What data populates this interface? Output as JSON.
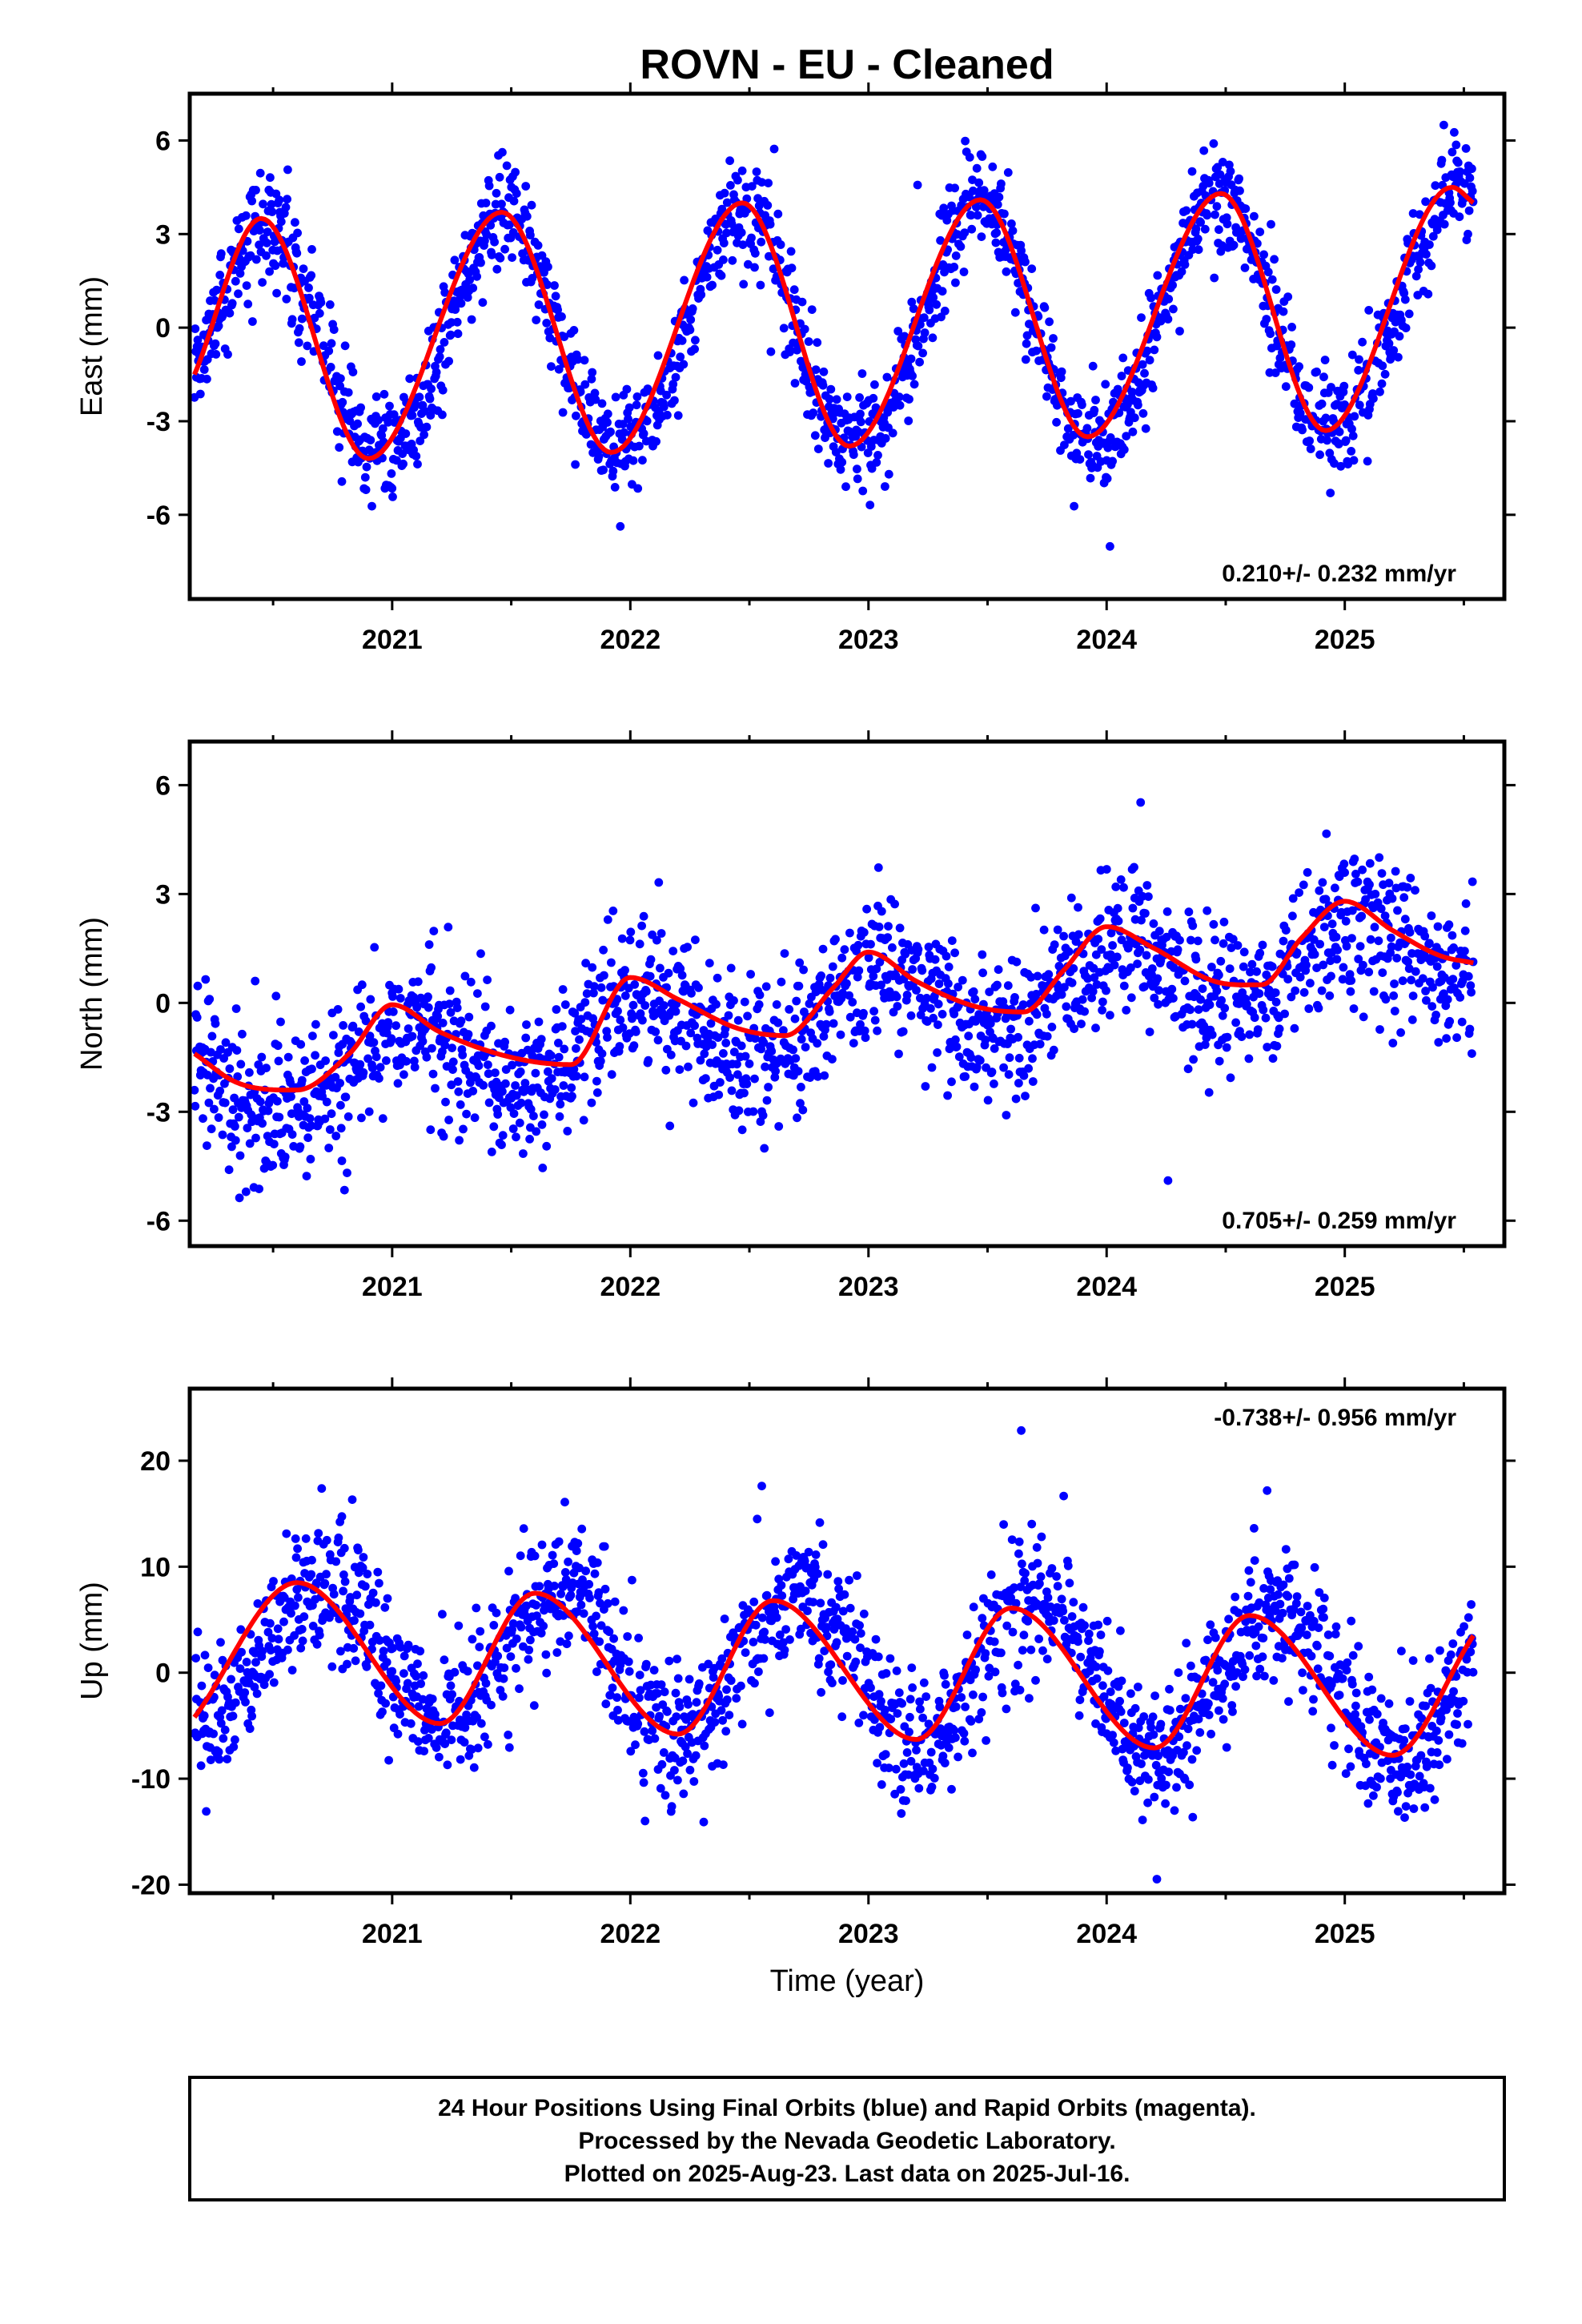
{
  "title": "ROVN  - EU - Cleaned",
  "x_axis_label": "Time (year)",
  "footer": {
    "line1": "24 Hour Positions Using Final Orbits (blue) and Rapid Orbits (magenta).",
    "line2": "Processed by the Nevada Geodetic Laboratory.",
    "line3": "Plotted on 2025-Aug-23. Last data on 2025-Jul-16."
  },
  "colors": {
    "final_orbits": "#0000ff",
    "fit_model": "#ff0000",
    "frame": "#000000"
  },
  "chart_data": [
    {
      "type": "scatter",
      "panel": "east",
      "ylabel": "East (mm)",
      "xlim": [
        2020.15,
        2025.67
      ],
      "ylim": [
        -8.7,
        7.5
      ],
      "xticks": [
        2021,
        2022,
        2023,
        2024,
        2025
      ],
      "xtick_labels": [
        "2021",
        "2022",
        "2023",
        "2024",
        "2025"
      ],
      "yticks": [
        -6,
        -3,
        0,
        3,
        6
      ],
      "ytick_labels": [
        "-6",
        "-3",
        "0",
        "3",
        "6"
      ],
      "rate_text": "0.210+/- 0.232 mm/yr",
      "rate_position": "bottom-right",
      "grid": false,
      "data_span": [
        2020.17,
        2025.54
      ],
      "series": [
        {
          "marker": "dots",
          "model": {
            "offset": 0.0,
            "trend": 0.21,
            "ref_year": 2023.0,
            "annual_cos": -3.7,
            "annual_sin": 0.95,
            "semiannual_cos": 0.25,
            "semiannual_sin": 0.0,
            "scatter_sd": 0.85
          }
        },
        {
          "marker": "line",
          "fit_points": [
            [
              2020.17,
              -1.5
            ],
            [
              2020.45,
              3.5
            ],
            [
              2020.9,
              -4.2
            ],
            [
              2021.46,
              3.7
            ],
            [
              2021.92,
              -4.0
            ],
            [
              2022.47,
              4.0
            ],
            [
              2022.92,
              -3.8
            ],
            [
              2023.47,
              4.1
            ],
            [
              2023.92,
              -3.5
            ],
            [
              2024.48,
              4.3
            ],
            [
              2024.92,
              -3.3
            ],
            [
              2025.45,
              4.5
            ],
            [
              2025.54,
              4.0
            ]
          ]
        }
      ]
    },
    {
      "type": "scatter",
      "panel": "north",
      "ylabel": "North (mm)",
      "xlim": [
        2020.15,
        2025.67
      ],
      "ylim": [
        -6.7,
        7.2
      ],
      "xticks": [
        2021,
        2022,
        2023,
        2024,
        2025
      ],
      "xtick_labels": [
        "2021",
        "2022",
        "2023",
        "2024",
        "2025"
      ],
      "yticks": [
        -6,
        -3,
        0,
        3,
        6
      ],
      "ytick_labels": [
        "-6",
        "-3",
        "0",
        "3",
        "6"
      ],
      "rate_text": "0.705+/- 0.259 mm/yr",
      "rate_position": "bottom-right",
      "grid": false,
      "data_span": [
        2020.17,
        2025.54
      ],
      "series": [
        {
          "marker": "dots",
          "model": {
            "offset": -0.2,
            "trend": 0.705,
            "ref_year": 2023.0,
            "annual_cos": 1.0,
            "annual_sin": 0.3,
            "semiannual_cos": 0.0,
            "semiannual_sin": 0.0,
            "scatter_sd": 1.0
          }
        },
        {
          "marker": "line",
          "fit_points": [
            [
              2020.17,
              -1.4
            ],
            [
              2020.35,
              -2.2
            ],
            [
              2020.6,
              -2.4
            ],
            [
              2020.82,
              -1.4
            ],
            [
              2021.0,
              -0.05
            ],
            [
              2021.2,
              -0.8
            ],
            [
              2021.5,
              -1.5
            ],
            [
              2021.75,
              -1.7
            ],
            [
              2022.0,
              0.7
            ],
            [
              2022.2,
              0.1
            ],
            [
              2022.45,
              -0.7
            ],
            [
              2022.65,
              -0.9
            ],
            [
              2022.85,
              0.4
            ],
            [
              2023.0,
              1.4
            ],
            [
              2023.2,
              0.6
            ],
            [
              2023.45,
              -0.1
            ],
            [
              2023.65,
              -0.25
            ],
            [
              2023.82,
              0.9
            ],
            [
              2024.0,
              2.1
            ],
            [
              2024.2,
              1.5
            ],
            [
              2024.45,
              0.6
            ],
            [
              2024.65,
              0.5
            ],
            [
              2024.82,
              1.8
            ],
            [
              2025.0,
              2.8
            ],
            [
              2025.2,
              2.0
            ],
            [
              2025.4,
              1.3
            ],
            [
              2025.54,
              1.1
            ]
          ]
        }
      ]
    },
    {
      "type": "scatter",
      "panel": "up",
      "ylabel": "Up (mm)",
      "xlim": [
        2020.15,
        2025.67
      ],
      "ylim": [
        -20.8,
        26.8
      ],
      "xticks": [
        2021,
        2022,
        2023,
        2024,
        2025
      ],
      "xtick_labels": [
        "2021",
        "2022",
        "2023",
        "2024",
        "2025"
      ],
      "yticks": [
        -20,
        -10,
        0,
        10,
        20
      ],
      "ytick_labels": [
        "-20",
        "-10",
        "0",
        "10",
        "20"
      ],
      "rate_text": "-0.738+/- 0.956 mm/yr",
      "rate_position": "top-right",
      "grid": false,
      "data_span": [
        2020.17,
        2025.54
      ],
      "series": [
        {
          "marker": "dots",
          "model": {
            "offset": 0.3,
            "trend": -0.738,
            "ref_year": 2023.0,
            "annual_cos": -1.5,
            "annual_sin": -6.4,
            "semiannual_cos": 0.0,
            "semiannual_sin": 0.0,
            "scatter_sd": 3.3
          }
        },
        {
          "marker": "line",
          "fit_points": [
            [
              2020.17,
              -4.2
            ],
            [
              2020.6,
              8.5
            ],
            [
              2021.2,
              -4.8
            ],
            [
              2021.6,
              7.5
            ],
            [
              2022.2,
              -5.8
            ],
            [
              2022.6,
              6.8
            ],
            [
              2023.2,
              -6.3
            ],
            [
              2023.6,
              6.1
            ],
            [
              2024.2,
              -7.1
            ],
            [
              2024.6,
              5.4
            ],
            [
              2025.2,
              -7.8
            ],
            [
              2025.54,
              3.5
            ]
          ]
        }
      ]
    }
  ]
}
